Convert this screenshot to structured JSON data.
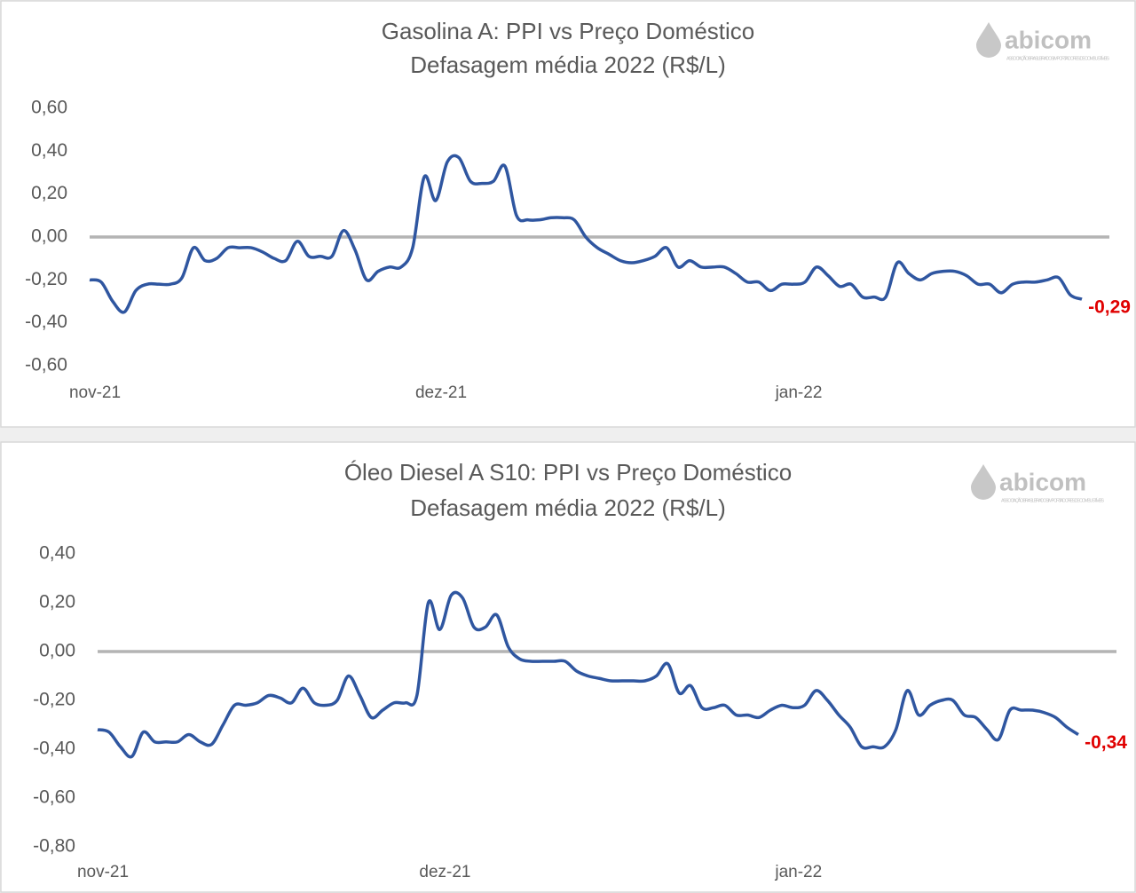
{
  "logo": {
    "name": "abicom",
    "tagline": "ASSOCIAÇÃO BRASILEIRA DOS IMPORTADORES DE COMBUSTÍVEIS"
  },
  "chart_data": [
    {
      "type": "line",
      "title": "Gasolina A: PPI vs Preço Doméstico",
      "subtitle": "Defasagem média 2022 (R$/L)",
      "categories": [
        "nov-21",
        null,
        null,
        null,
        null,
        null,
        null,
        null,
        null,
        null,
        null,
        null,
        null,
        null,
        null,
        null,
        null,
        null,
        null,
        null,
        null,
        null,
        null,
        null,
        null,
        null,
        null,
        null,
        null,
        null,
        "dez-21",
        null,
        null,
        null,
        null,
        null,
        null,
        null,
        null,
        null,
        null,
        null,
        null,
        null,
        null,
        null,
        null,
        null,
        null,
        null,
        null,
        null,
        null,
        null,
        null,
        null,
        null,
        null,
        null,
        null,
        null,
        "jan-22",
        null,
        null,
        null,
        null,
        null,
        null,
        null,
        null,
        null,
        null,
        null,
        null,
        null,
        null,
        null,
        null,
        null,
        null,
        null,
        null,
        null,
        null,
        null,
        null,
        null
      ],
      "series": [
        {
          "color": "#2f56a0",
          "values": [
            -0.2,
            -0.21,
            -0.3,
            -0.35,
            -0.25,
            -0.22,
            -0.22,
            -0.22,
            -0.19,
            -0.05,
            -0.11,
            -0.1,
            -0.05,
            -0.05,
            -0.05,
            -0.07,
            -0.1,
            -0.11,
            -0.02,
            -0.09,
            -0.09,
            -0.09,
            0.03,
            -0.06,
            -0.2,
            -0.16,
            -0.14,
            -0.14,
            -0.05,
            0.28,
            0.17,
            0.35,
            0.37,
            0.26,
            0.25,
            0.26,
            0.33,
            0.1,
            0.08,
            0.08,
            0.09,
            0.09,
            0.08,
            0.0,
            -0.05,
            -0.08,
            -0.11,
            -0.12,
            -0.11,
            -0.09,
            -0.05,
            -0.14,
            -0.11,
            -0.14,
            -0.14,
            -0.14,
            -0.17,
            -0.21,
            -0.21,
            -0.25,
            -0.22,
            -0.22,
            -0.21,
            -0.14,
            -0.18,
            -0.23,
            -0.22,
            -0.28,
            -0.28,
            -0.28,
            -0.12,
            -0.17,
            -0.2,
            -0.17,
            -0.16,
            -0.16,
            -0.18,
            -0.22,
            -0.22,
            -0.26,
            -0.22,
            -0.21,
            -0.21,
            -0.2,
            -0.19,
            -0.27,
            -0.29
          ]
        }
      ],
      "end_label": {
        "value": -0.29,
        "label": "-0,29",
        "color": "#e00000"
      },
      "ylim": [
        -0.6,
        0.6
      ],
      "yticks": [
        {
          "value": -0.6,
          "label": "-0,60"
        },
        {
          "value": -0.4,
          "label": "-0,40"
        },
        {
          "value": -0.2,
          "label": "-0,20"
        },
        {
          "value": 0,
          "label": "0,00"
        },
        {
          "value": 0.2,
          "label": "0,20"
        },
        {
          "value": 0.4,
          "label": "0,40"
        },
        {
          "value": 0.6,
          "label": "0,60"
        }
      ]
    },
    {
      "type": "line",
      "title": "Óleo Diesel A S10: PPI vs Preço Doméstico",
      "subtitle": "Defasagem média 2022 (R$/L)",
      "categories": [
        "nov-21",
        null,
        null,
        null,
        null,
        null,
        null,
        null,
        null,
        null,
        null,
        null,
        null,
        null,
        null,
        null,
        null,
        null,
        null,
        null,
        null,
        null,
        null,
        null,
        null,
        null,
        null,
        null,
        null,
        null,
        "dez-21",
        null,
        null,
        null,
        null,
        null,
        null,
        null,
        null,
        null,
        null,
        null,
        null,
        null,
        null,
        null,
        null,
        null,
        null,
        null,
        null,
        null,
        null,
        null,
        null,
        null,
        null,
        null,
        null,
        null,
        null,
        "jan-22",
        null,
        null,
        null,
        null,
        null,
        null,
        null,
        null,
        null,
        null,
        null,
        null,
        null,
        null,
        null,
        null,
        null,
        null,
        null,
        null,
        null,
        null,
        null,
        null,
        null
      ],
      "series": [
        {
          "color": "#2f56a0",
          "values": [
            -0.32,
            -0.33,
            -0.39,
            -0.43,
            -0.33,
            -0.37,
            -0.37,
            -0.37,
            -0.34,
            -0.37,
            -0.38,
            -0.3,
            -0.22,
            -0.22,
            -0.21,
            -0.18,
            -0.19,
            -0.21,
            -0.15,
            -0.21,
            -0.22,
            -0.2,
            -0.1,
            -0.18,
            -0.27,
            -0.24,
            -0.21,
            -0.21,
            -0.18,
            0.2,
            0.09,
            0.23,
            0.22,
            0.1,
            0.1,
            0.15,
            0.02,
            -0.03,
            -0.04,
            -0.04,
            -0.04,
            -0.04,
            -0.08,
            -0.1,
            -0.11,
            -0.12,
            -0.12,
            -0.12,
            -0.12,
            -0.1,
            -0.05,
            -0.17,
            -0.14,
            -0.23,
            -0.23,
            -0.22,
            -0.26,
            -0.26,
            -0.27,
            -0.24,
            -0.22,
            -0.23,
            -0.22,
            -0.16,
            -0.2,
            -0.26,
            -0.31,
            -0.39,
            -0.39,
            -0.39,
            -0.32,
            -0.16,
            -0.26,
            -0.22,
            -0.2,
            -0.2,
            -0.26,
            -0.27,
            -0.32,
            -0.36,
            -0.24,
            -0.24,
            -0.24,
            -0.25,
            -0.27,
            -0.31,
            -0.34
          ]
        }
      ],
      "end_label": {
        "value": -0.34,
        "label": "-0,34",
        "color": "#e00000"
      },
      "ylim": [
        -0.8,
        0.4
      ],
      "yticks": [
        {
          "value": -0.8,
          "label": "-0,80"
        },
        {
          "value": -0.6,
          "label": "-0,60"
        },
        {
          "value": -0.4,
          "label": "-0,40"
        },
        {
          "value": -0.2,
          "label": "-0,20"
        },
        {
          "value": 0,
          "label": "0,00"
        },
        {
          "value": 0.2,
          "label": "0,20"
        },
        {
          "value": 0.4,
          "label": "0,40"
        }
      ]
    }
  ]
}
